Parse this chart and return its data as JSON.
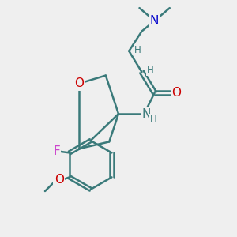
{
  "bg_color": "#efefef",
  "bond_color": "#3a7a7a",
  "bond_width": 1.8,
  "atom_colors": {
    "O": "#cc0000",
    "N_blue": "#0000cc",
    "N_teal": "#3a7a7a",
    "F": "#cc44cc",
    "H": "#3a7a7a",
    "C": "#3a7a7a"
  },
  "font_size_atom": 11,
  "font_size_small": 8.5,
  "font_size_h": 8.5
}
